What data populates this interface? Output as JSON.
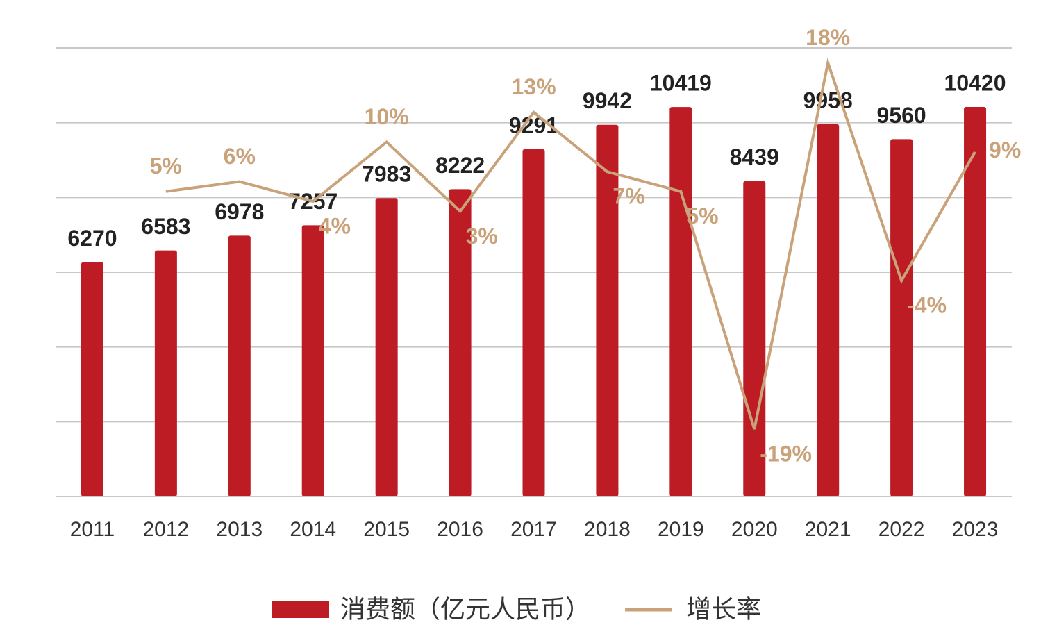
{
  "chart_data": {
    "type": "bar_line",
    "categories": [
      "2011",
      "2012",
      "2013",
      "2014",
      "2015",
      "2016",
      "2017",
      "2018",
      "2019",
      "2020",
      "2021",
      "2022",
      "2023"
    ],
    "series": [
      {
        "name": "消费额（亿元人民币）",
        "type": "bar",
        "color": "#bd1c24",
        "values": [
          6270,
          6583,
          6978,
          7257,
          7983,
          8222,
          9291,
          9942,
          10419,
          8439,
          9958,
          9560,
          10420
        ]
      },
      {
        "name": "增长率",
        "type": "line",
        "axis": "y2",
        "color": "#c9a27a",
        "values": [
          null,
          5,
          6,
          4,
          10,
          3,
          13,
          7,
          5,
          -19,
          18,
          -4,
          9
        ],
        "value_labels": [
          null,
          "5%",
          "6%",
          "4%",
          "10%",
          "3%",
          "13%",
          "7%",
          "5%",
          "-19%",
          "18%",
          "-4%",
          "9%"
        ]
      }
    ],
    "ylim": [
      0,
      12000
    ],
    "yticks": [
      0,
      2000,
      4000,
      6000,
      8000,
      10000,
      12000
    ],
    "y2lim": [
      -25.8,
      19.5
    ],
    "grid": true
  }
}
